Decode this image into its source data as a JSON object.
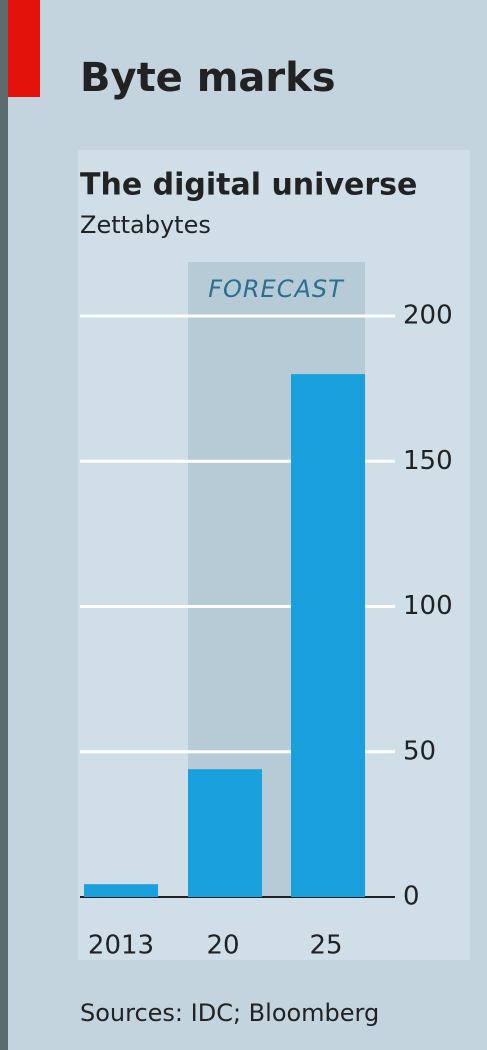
{
  "chart_data": {
    "type": "bar",
    "title": "Byte marks",
    "subtitle": "The digital universe",
    "y_label": "Zettabytes",
    "categories": [
      "2013",
      "20",
      "25"
    ],
    "values": [
      4.4,
      44,
      180
    ],
    "color": "#1aa0dc",
    "ylim": [
      0,
      200
    ],
    "yticks": [
      0,
      50,
      100,
      150,
      200
    ],
    "grid": true,
    "annotation": "FORECAST",
    "source": "Sources: IDC; Bloomberg"
  }
}
